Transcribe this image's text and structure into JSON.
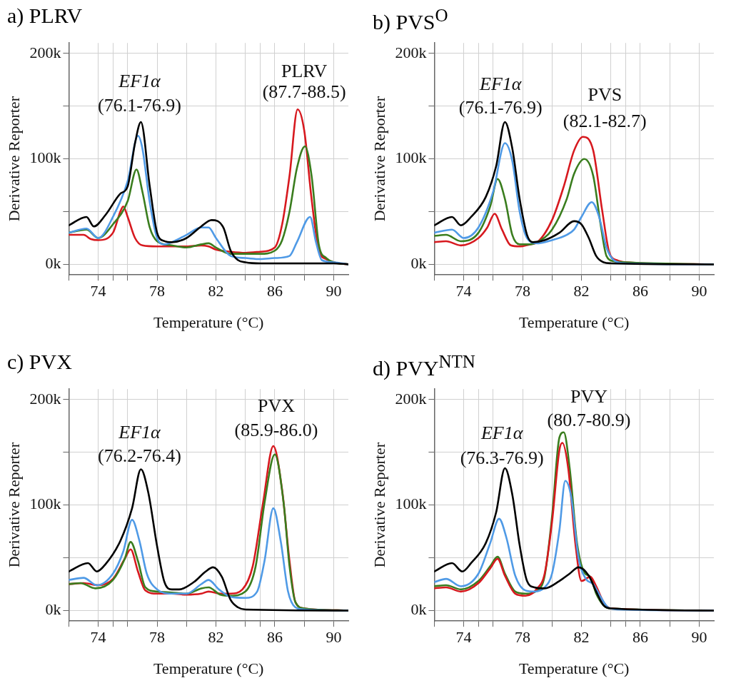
{
  "chart_data": [
    {
      "type": "line",
      "title": "a) PLRV",
      "xlabel": "Temperature (°C)",
      "ylabel": "Derivative Reporter",
      "xlim": [
        72,
        91
      ],
      "ylim": [
        -10000,
        210000
      ],
      "xticks": [
        {
          "value": 72,
          "label": null
        },
        74,
        {
          "value": 75,
          "label": null
        },
        {
          "value": 76,
          "label": null
        },
        78,
        {
          "value": 80,
          "label": null
        },
        82,
        {
          "value": 84,
          "label": null
        },
        {
          "value": 85,
          "label": null
        },
        86,
        {
          "value": 88,
          "label": null
        },
        90
      ],
      "yticks": [
        {
          "value": 0,
          "label": "0k"
        },
        {
          "value": 50000,
          "label": null
        },
        {
          "value": 100000,
          "label": "100k"
        },
        {
          "value": 150000,
          "label": null
        },
        {
          "value": 200000,
          "label": "200k"
        }
      ],
      "grid": true,
      "legend": false,
      "marker": "none",
      "line_style": "solid",
      "annotations": [
        "EF1α",
        "(76.1-76.9)",
        "PLRV",
        "(87.7-88.5)"
      ],
      "series": [
        {
          "color": "#000000",
          "x": [
            72,
            73.2,
            73.7,
            74.5,
            75.5,
            76,
            76.5,
            76.9,
            77.5,
            78,
            78.5,
            79,
            80,
            81,
            81.7,
            82.5,
            83,
            83.5,
            84,
            85,
            86,
            87,
            88,
            89,
            90,
            91
          ],
          "values": [
            37000,
            45000,
            36000,
            47000,
            67000,
            74000,
            115000,
            135000,
            74000,
            30000,
            22000,
            21000,
            25000,
            36000,
            42000,
            35000,
            13000,
            4000,
            2000,
            1000,
            1000,
            1000,
            1000,
            1000,
            1000,
            0
          ]
        },
        {
          "color": "#4f9ae6",
          "x": [
            72,
            73.2,
            74,
            75,
            76,
            76.7,
            77,
            77.5,
            78,
            78.5,
            79,
            80,
            81,
            81.5,
            82,
            83,
            84,
            85,
            86,
            87,
            87.5,
            88.4,
            88.8,
            89.2,
            90,
            91
          ],
          "values": [
            30000,
            34000,
            25000,
            45000,
            79000,
            122000,
            110000,
            59000,
            25000,
            19000,
            21000,
            28000,
            35000,
            35000,
            25000,
            8000,
            6000,
            5000,
            6000,
            8000,
            21000,
            45000,
            21000,
            4000,
            2000,
            0
          ]
        },
        {
          "color": "#3a7d1e",
          "x": [
            72,
            73.2,
            74,
            75,
            76,
            76.6,
            77,
            77.5,
            78,
            79,
            80,
            81,
            81.5,
            82,
            83,
            84,
            85,
            86,
            86.5,
            87,
            87.5,
            88.05,
            88.5,
            89,
            89.5,
            90,
            91
          ],
          "values": [
            30000,
            33000,
            25000,
            38000,
            60000,
            90000,
            69000,
            35000,
            22000,
            18000,
            16000,
            19000,
            20000,
            16000,
            10000,
            10000,
            10000,
            13000,
            23000,
            50000,
            91000,
            112000,
            84000,
            18000,
            6000,
            2000,
            0
          ]
        },
        {
          "color": "#d7191f",
          "x": [
            72,
            73,
            73.5,
            74,
            75,
            75.5,
            75.7,
            76,
            76.5,
            77,
            78,
            79,
            80,
            81,
            81.5,
            82,
            83,
            84,
            85,
            86,
            86.5,
            87,
            87.55,
            88,
            88.5,
            89,
            89.5,
            90,
            91
          ],
          "values": [
            28000,
            28000,
            24000,
            23000,
            30000,
            50000,
            55000,
            45000,
            25000,
            18000,
            17000,
            17000,
            17000,
            18000,
            17000,
            14000,
            12000,
            11000,
            12000,
            16000,
            38000,
            84000,
            147000,
            127000,
            62000,
            13000,
            5000,
            2000,
            0
          ]
        }
      ]
    },
    {
      "type": "line",
      "title": "b) PVS$^{O}$",
      "xlabel": "Temperature (°C)",
      "ylabel": "Derivative Reporter",
      "xlim": [
        72,
        91
      ],
      "ylim": [
        -10000,
        210000
      ],
      "xticks": [
        {
          "value": 72,
          "label": null
        },
        74,
        {
          "value": 75,
          "label": null
        },
        {
          "value": 76,
          "label": null
        },
        78,
        {
          "value": 80,
          "label": null
        },
        82,
        {
          "value": 84,
          "label": null
        },
        {
          "value": 85,
          "label": null
        },
        86,
        {
          "value": 88,
          "label": null
        },
        90
      ],
      "yticks": [
        {
          "value": 0,
          "label": "0k"
        },
        {
          "value": 50000,
          "label": null
        },
        {
          "value": 100000,
          "label": "100k"
        },
        {
          "value": 150000,
          "label": null
        },
        {
          "value": 200000,
          "label": "200k"
        }
      ],
      "grid": true,
      "legend": false,
      "marker": "none",
      "line_style": "solid",
      "annotations": [
        "EF1α",
        "(76.1-76.9)",
        "PVS",
        "(82.1-82.7)"
      ],
      "series": [
        {
          "color": "#000000",
          "x": [
            72,
            73.2,
            73.8,
            74.5,
            75.5,
            76.2,
            76.8,
            77.3,
            77.8,
            78.3,
            78.7,
            79.5,
            80.5,
            81.5,
            82,
            82.5,
            83,
            83.5,
            84,
            91
          ],
          "values": [
            37000,
            45000,
            37000,
            45000,
            64000,
            93000,
            135000,
            110000,
            62000,
            28000,
            21000,
            23000,
            30000,
            41000,
            38000,
            25000,
            8000,
            2000,
            1000,
            0
          ]
        },
        {
          "color": "#4f9ae6",
          "x": [
            72,
            73.2,
            74,
            75,
            76,
            76.8,
            77.3,
            77.8,
            78.3,
            79,
            80,
            81,
            81.5,
            82,
            82.7,
            83.2,
            83.7,
            84.2,
            85,
            91
          ],
          "values": [
            30000,
            33000,
            25000,
            35000,
            69000,
            115000,
            98000,
            50000,
            25000,
            20000,
            23000,
            28000,
            33000,
            45000,
            59000,
            45000,
            16000,
            4000,
            1000,
            0
          ]
        },
        {
          "color": "#3a7d1e",
          "x": [
            72,
            72.8,
            73.8,
            75,
            75.8,
            76.3,
            76.8,
            77.3,
            77.8,
            78.5,
            79,
            80,
            81,
            81.5,
            82.2,
            82.8,
            83.3,
            83.7,
            84.2,
            85,
            91
          ],
          "values": [
            27000,
            28000,
            22000,
            30000,
            55000,
            81000,
            62000,
            28000,
            19000,
            19000,
            21000,
            33000,
            62000,
            86000,
            100000,
            84000,
            38000,
            8000,
            3000,
            2000,
            0
          ]
        },
        {
          "color": "#d7191f",
          "x": [
            72,
            72.8,
            73.8,
            75,
            75.6,
            76.1,
            76.6,
            77.2,
            77.8,
            78.5,
            79,
            80,
            80.8,
            81.5,
            82.1,
            82.8,
            83.4,
            83.9,
            84.4,
            85,
            91
          ],
          "values": [
            21000,
            22000,
            18000,
            25000,
            35000,
            48000,
            33000,
            18000,
            17000,
            19000,
            21000,
            42000,
            74000,
            108000,
            121000,
            108000,
            52000,
            11000,
            4000,
            2000,
            0
          ]
        }
      ]
    },
    {
      "type": "line",
      "title": "c) PVX",
      "xlabel": "Temperature (°C)",
      "ylabel": "Derivative Reporter",
      "xlim": [
        72,
        91
      ],
      "ylim": [
        -10000,
        210000
      ],
      "xticks": [
        {
          "value": 72,
          "label": null
        },
        74,
        {
          "value": 75,
          "label": null
        },
        {
          "value": 76,
          "label": null
        },
        78,
        {
          "value": 80,
          "label": null
        },
        82,
        {
          "value": 84,
          "label": null
        },
        {
          "value": 85,
          "label": null
        },
        86,
        {
          "value": 88,
          "label": null
        },
        90
      ],
      "yticks": [
        {
          "value": 0,
          "label": "0k"
        },
        {
          "value": 50000,
          "label": null
        },
        {
          "value": 100000,
          "label": "100k"
        },
        {
          "value": 150000,
          "label": null
        },
        {
          "value": 200000,
          "label": "200k"
        }
      ],
      "grid": true,
      "legend": false,
      "marker": "none",
      "line_style": "solid",
      "annotations": [
        "EF1α",
        "(76.2-76.4)",
        "PVX",
        "(85.9-86.0)"
      ],
      "series": [
        {
          "color": "#000000",
          "x": [
            72,
            73.3,
            73.9,
            74.5,
            75.5,
            76.3,
            76.9,
            77.4,
            78,
            78.5,
            79,
            79.5,
            80.5,
            81.3,
            81.8,
            82.4,
            83,
            83.5,
            84,
            91
          ],
          "values": [
            37000,
            45000,
            37000,
            44000,
            66000,
            97000,
            134000,
            112000,
            61000,
            27000,
            20000,
            20000,
            27000,
            37000,
            41000,
            32000,
            10000,
            3000,
            1000,
            0
          ]
        },
        {
          "color": "#4f9ae6",
          "x": [
            72,
            73,
            73.9,
            75,
            75.7,
            76.3,
            76.8,
            77.3,
            78,
            79,
            80,
            81,
            81.5,
            82.2,
            83,
            84,
            84.8,
            85.3,
            85.9,
            86.4,
            86.9,
            87.4,
            88,
            91
          ],
          "values": [
            29000,
            31000,
            24000,
            35000,
            56000,
            86000,
            66000,
            35000,
            20000,
            16000,
            16000,
            25000,
            29000,
            20000,
            13000,
            12000,
            18000,
            47000,
            97000,
            66000,
            18000,
            3000,
            1000,
            0
          ]
        },
        {
          "color": "#3a7d1e",
          "x": [
            72,
            72.8,
            73.8,
            75,
            75.8,
            76.2,
            76.7,
            77.2,
            78,
            79,
            80,
            81,
            81.5,
            82.3,
            83,
            84,
            84.7,
            85.3,
            86,
            86.6,
            87,
            87.4,
            88,
            91
          ],
          "values": [
            25000,
            26000,
            21000,
            29000,
            49000,
            65000,
            47000,
            22000,
            18000,
            17000,
            16000,
            21000,
            22000,
            15000,
            14000,
            18000,
            42000,
            102000,
            148000,
            102000,
            42000,
            8000,
            2000,
            0
          ]
        },
        {
          "color": "#d7191f",
          "x": [
            72,
            73,
            74,
            75,
            75.8,
            76.2,
            76.7,
            77.2,
            78,
            79,
            80,
            81,
            81.5,
            82.3,
            83,
            83.8,
            84.5,
            85.2,
            85.9,
            86.5,
            87,
            87.4,
            88,
            91
          ],
          "values": [
            25000,
            26000,
            24000,
            30000,
            49000,
            58000,
            37000,
            19000,
            16000,
            16000,
            15000,
            16000,
            18000,
            16000,
            16000,
            20000,
            42000,
            102000,
            156000,
            114000,
            47000,
            8000,
            2000,
            0
          ]
        }
      ]
    },
    {
      "type": "line",
      "title": "d) PVY$^{NTN}$",
      "xlabel": "Temperature (°C)",
      "ylabel": "Derivative Reporter",
      "xlim": [
        72,
        91
      ],
      "ylim": [
        -10000,
        210000
      ],
      "xticks": [
        {
          "value": 72,
          "label": null
        },
        74,
        {
          "value": 75,
          "label": null
        },
        {
          "value": 76,
          "label": null
        },
        78,
        {
          "value": 80,
          "label": null
        },
        82,
        {
          "value": 84,
          "label": null
        },
        {
          "value": 85,
          "label": null
        },
        86,
        {
          "value": 88,
          "label": null
        },
        90
      ],
      "yticks": [
        {
          "value": 0,
          "label": "0k"
        },
        {
          "value": 50000,
          "label": null
        },
        {
          "value": 100000,
          "label": "100k"
        },
        {
          "value": 150000,
          "label": null
        },
        {
          "value": 200000,
          "label": "200k"
        }
      ],
      "grid": true,
      "legend": false,
      "marker": "none",
      "line_style": "solid",
      "annotations": [
        "EF1α",
        "(76.3-76.9)",
        "PVY",
        "(80.7-80.9)"
      ],
      "series": [
        {
          "color": "#000000",
          "x": [
            72,
            73.2,
            73.9,
            74.5,
            75.5,
            76.2,
            76.8,
            77.3,
            77.8,
            78.3,
            78.8,
            79.5,
            80.5,
            81.2,
            81.8,
            82.5,
            83,
            83.5,
            84,
            91
          ],
          "values": [
            37000,
            45000,
            37000,
            45000,
            64000,
            93000,
            135000,
            110000,
            62000,
            28000,
            22000,
            21000,
            28000,
            35000,
            41000,
            33000,
            18000,
            5000,
            2000,
            0
          ]
        },
        {
          "color": "#4f9ae6",
          "x": [
            72,
            72.8,
            73.8,
            75,
            75.8,
            76.4,
            76.9,
            77.5,
            78.2,
            78.8,
            79.5,
            80,
            80.5,
            80.9,
            81.3,
            81.8,
            82.3,
            82.8,
            83.3,
            83.8,
            84.5,
            91
          ],
          "values": [
            27000,
            30000,
            23000,
            35000,
            64000,
            87000,
            69000,
            33000,
            19000,
            18000,
            22000,
            35000,
            76000,
            123000,
            108000,
            50000,
            30000,
            25000,
            13000,
            3000,
            1000,
            0
          ]
        },
        {
          "color": "#d7191f",
          "x": [
            72,
            72.8,
            73.8,
            75,
            75.8,
            76.3,
            76.8,
            77.5,
            78.2,
            79,
            79.5,
            80,
            80.5,
            80.7,
            81.1,
            81.6,
            82,
            82.6,
            83,
            83.5,
            84,
            91
          ],
          "values": [
            21000,
            22000,
            18000,
            26000,
            40000,
            49000,
            33000,
            16000,
            14000,
            21000,
            35000,
            84000,
            152000,
            159000,
            135000,
            62000,
            28000,
            32000,
            23000,
            8000,
            2000,
            0
          ]
        },
        {
          "color": "#3a7d1e",
          "x": [
            72,
            72.8,
            73.8,
            75,
            75.8,
            76.3,
            76.8,
            77.5,
            78.2,
            79,
            79.5,
            80,
            80.5,
            80.8,
            81.2,
            81.7,
            82.2,
            82.6,
            83,
            83.5,
            84,
            91
          ],
          "values": [
            23000,
            24000,
            20000,
            28000,
            42000,
            51000,
            35000,
            18000,
            16000,
            19000,
            33000,
            89000,
            164000,
            169000,
            135000,
            64000,
            36000,
            32000,
            16000,
            5000,
            2000,
            0
          ]
        }
      ]
    }
  ]
}
